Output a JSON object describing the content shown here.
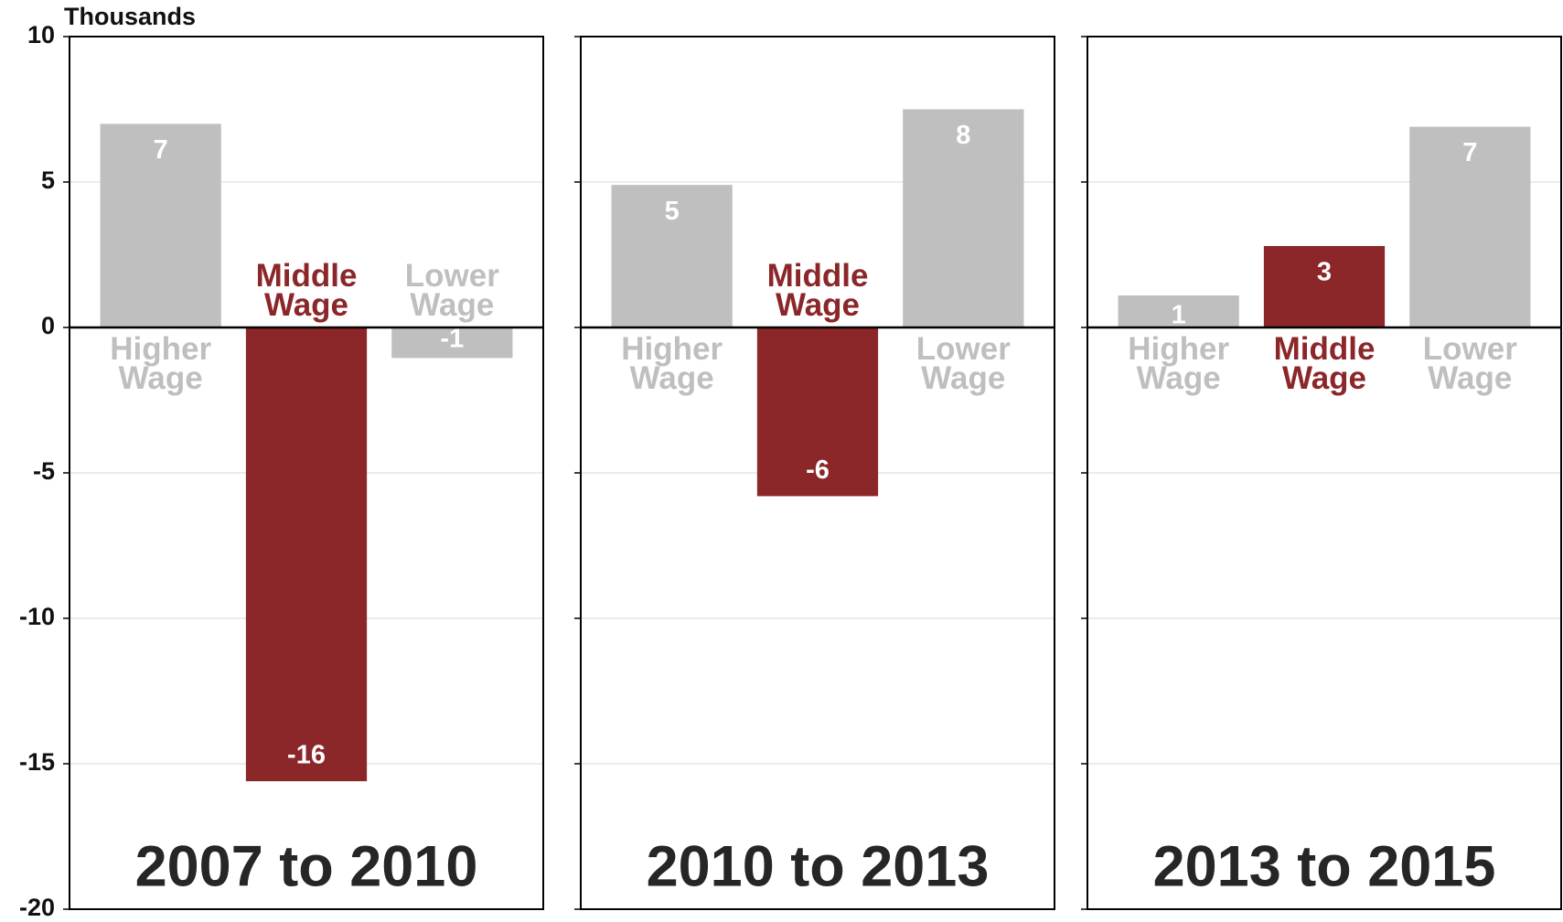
{
  "y_axis": {
    "label": "Thousands",
    "ylim": [
      -20,
      10
    ],
    "yticks": [
      -20,
      -15,
      -10,
      -5,
      0,
      5,
      10
    ]
  },
  "grid": true,
  "chart_data": [
    {
      "type": "bar",
      "title": "2007 to 2010",
      "categories": [
        "Higher Wage",
        "Middle Wage",
        "Lower Wage"
      ],
      "values": [
        7.0,
        -15.6,
        -1.05
      ],
      "value_labels": [
        "7",
        "-16",
        "-1"
      ],
      "colors": [
        "#bfbfbf",
        "#8b2629",
        "#bfbfbf"
      ]
    },
    {
      "type": "bar",
      "title": "2010 to 2013",
      "categories": [
        "Higher Wage",
        "Middle Wage",
        "Lower Wage"
      ],
      "values": [
        4.9,
        -5.8,
        7.5
      ],
      "value_labels": [
        "5",
        "-6",
        "8"
      ],
      "colors": [
        "#bfbfbf",
        "#8b2629",
        "#bfbfbf"
      ]
    },
    {
      "type": "bar",
      "title": "2013 to 2015",
      "categories": [
        "Higher Wage",
        "Middle Wage",
        "Lower Wage"
      ],
      "values": [
        1.1,
        2.8,
        6.9
      ],
      "value_labels": [
        "1",
        "3",
        "7"
      ],
      "colors": [
        "#bfbfbf",
        "#8b2629",
        "#bfbfbf"
      ]
    }
  ]
}
